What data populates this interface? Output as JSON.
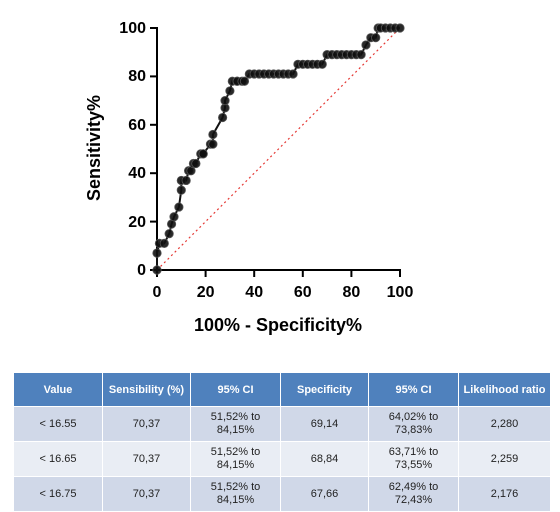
{
  "chart_data": {
    "type": "line",
    "xlabel": "100% - Specificity%",
    "ylabel": "Sensitivity%",
    "xlim": [
      0,
      100
    ],
    "ylim": [
      0,
      100
    ],
    "xticks": [
      "0",
      "20",
      "40",
      "60",
      "80",
      "100"
    ],
    "yticks": [
      "0",
      "20",
      "40",
      "60",
      "80",
      "100"
    ],
    "grid": false,
    "reference_line": {
      "x": [
        0,
        100
      ],
      "y": [
        0,
        100
      ],
      "color": "#e53935",
      "style": "dotted"
    },
    "series": [
      {
        "color": "#111111",
        "x": [
          0,
          0,
          1,
          3,
          5,
          6,
          7,
          9,
          10,
          10,
          12,
          13,
          14,
          15,
          16,
          18,
          19,
          19,
          22,
          23,
          23,
          27,
          28,
          28,
          30,
          31,
          33,
          33,
          35,
          36,
          38,
          40,
          42,
          44,
          46,
          48,
          50,
          52,
          54,
          56,
          58,
          60,
          62,
          64,
          66,
          68,
          70,
          72,
          74,
          76,
          78,
          80,
          82,
          84,
          86,
          88,
          90,
          91,
          92,
          94,
          96,
          98,
          100
        ],
        "y": [
          0,
          7,
          11,
          11,
          15,
          19,
          22,
          26,
          33,
          37,
          37,
          41,
          41,
          44,
          44,
          48,
          48,
          48,
          52,
          52,
          56,
          63,
          67,
          70,
          74,
          78,
          78,
          78,
          78,
          78,
          81,
          81,
          81,
          81,
          81,
          81,
          81,
          81,
          81,
          81,
          85,
          85,
          85,
          85,
          85,
          85,
          89,
          89,
          89,
          89,
          89,
          89,
          89,
          89,
          93,
          96,
          96,
          100,
          100,
          100,
          100,
          100,
          100
        ]
      }
    ]
  },
  "table": {
    "headers": [
      "Value",
      "Sensibility  (%)",
      "95% CI",
      "Specificity",
      "95% CI",
      "Likelihood ratio"
    ],
    "rows": [
      [
        "< 16.55",
        "70,37",
        "51,52% to 84,15%",
        "69,14",
        "64,02% to 73,83%",
        "2,280"
      ],
      [
        "< 16.65",
        "70,37",
        "51,52% to 84,15%",
        "68,84",
        "63,71% to 73,55%",
        "2,259"
      ],
      [
        "< 16.75",
        "70,37",
        "51,52% to 84,15%",
        "67,66",
        "62,49% to 72,43%",
        "2,176"
      ]
    ]
  }
}
